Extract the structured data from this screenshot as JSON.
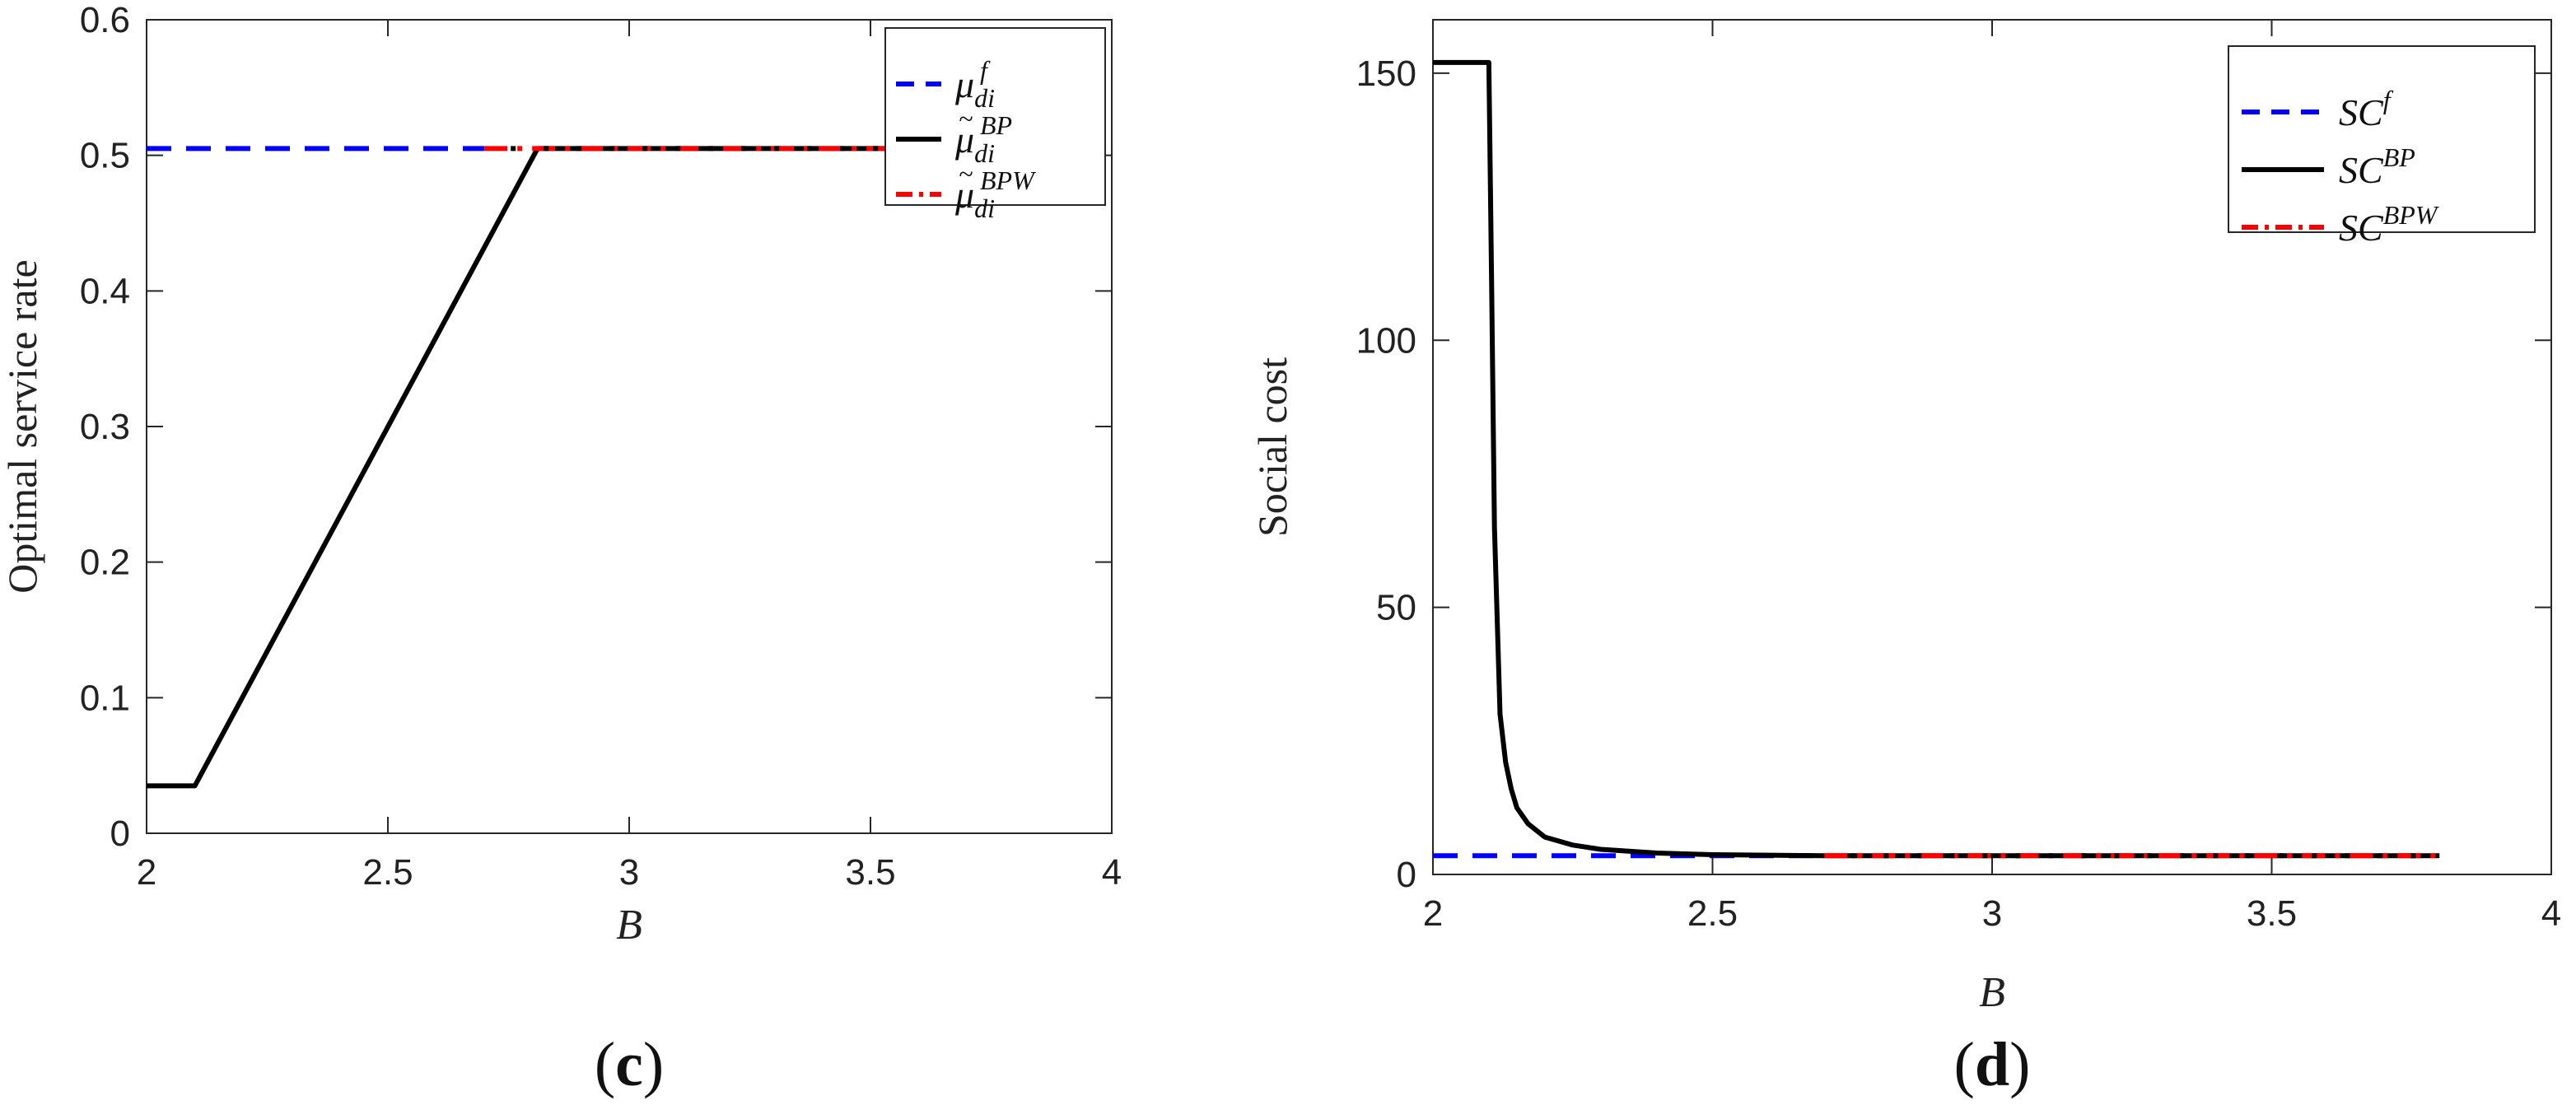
{
  "chart_data": [
    {
      "type": "line",
      "panel": {
        "open": "(",
        "letter": "c",
        "close": ")"
      },
      "xlabel": "B",
      "ylabel": "Optimal service rate",
      "xlim": [
        2,
        4
      ],
      "ylim": [
        0,
        0.6
      ],
      "xticks": [
        "2",
        "2.5",
        "3",
        "3.5",
        "4"
      ],
      "xtick_values": [
        2,
        2.5,
        3,
        3.5,
        4
      ],
      "yticks": [
        "0",
        "0.1",
        "0.2",
        "0.3",
        "0.4",
        "0.5",
        "0.6"
      ],
      "ytick_values": [
        0,
        0.1,
        0.2,
        0.3,
        0.4,
        0.5,
        0.6
      ],
      "legend_position": "top-right",
      "series": [
        {
          "name": "μ",
          "sup": "f",
          "sub": "di",
          "tilde": false,
          "color": "#0000ff",
          "dash": "dashed",
          "x": [
            2,
            2.7
          ],
          "y": [
            0.505,
            0.505
          ]
        },
        {
          "name": "μ",
          "sup": "BP",
          "sub": "di",
          "tilde": true,
          "color": "#000000",
          "dash": "solid",
          "x": [
            2,
            2.1,
            2.81,
            3.55
          ],
          "y": [
            0.035,
            0.035,
            0.505,
            0.505
          ]
        },
        {
          "name": "μ",
          "sup": "BPW",
          "sub": "di",
          "tilde": true,
          "color": "#ff0000",
          "dash": "dashdot",
          "x": [
            2.7,
            3.55
          ],
          "y": [
            0.505,
            0.505
          ]
        }
      ]
    },
    {
      "type": "line",
      "panel": {
        "open": "(",
        "letter": "d",
        "close": ")"
      },
      "xlabel": "B",
      "ylabel": "Social cost",
      "xlim": [
        2,
        4
      ],
      "ylim": [
        0,
        160
      ],
      "xticks": [
        "2",
        "2.5",
        "3",
        "3.5",
        "4"
      ],
      "xtick_values": [
        2,
        2.5,
        3,
        3.5,
        4
      ],
      "yticks": [
        "0",
        "50",
        "100",
        "150"
      ],
      "ytick_values": [
        0,
        50,
        100,
        150
      ],
      "legend_position": "top-right",
      "series": [
        {
          "name": "SC",
          "sup": "f",
          "color": "#0000ff",
          "dash": "dashed",
          "x": [
            2,
            2.7
          ],
          "y": [
            3.5,
            3.5
          ]
        },
        {
          "name": "SC",
          "sup": "BP",
          "color": "#000000",
          "dash": "solid",
          "x": [
            2,
            2.1,
            2.105,
            2.11,
            2.12,
            2.13,
            2.14,
            2.15,
            2.17,
            2.2,
            2.25,
            2.3,
            2.4,
            2.5,
            2.6,
            2.7,
            3.8
          ],
          "y": [
            152,
            152,
            110,
            65,
            30,
            21,
            16,
            12.5,
            9.5,
            7,
            5.5,
            4.7,
            4,
            3.7,
            3.6,
            3.5,
            3.5
          ]
        },
        {
          "name": "SC",
          "sup": "BPW",
          "color": "#ff0000",
          "dash": "dashdot",
          "x": [
            2.7,
            3.8
          ],
          "y": [
            3.5,
            3.5
          ]
        }
      ]
    }
  ]
}
